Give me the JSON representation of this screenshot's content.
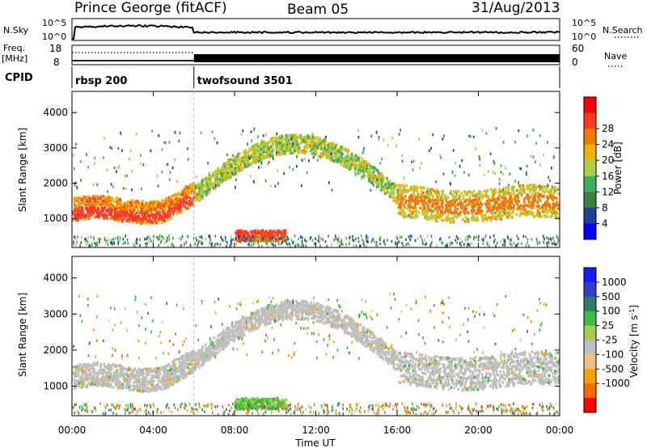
{
  "header": {
    "station": "Prince George (fitACF)",
    "beam": "Beam 05",
    "date": "31/Aug/2013"
  },
  "top_panels": {
    "nsky_label": "N.Sky",
    "nsky_ticks": [
      "10^5",
      "10^0"
    ],
    "nsearch_label": "N.Search",
    "nsearch_ticks": [
      "10^5",
      "10^0"
    ],
    "freq_label": "Freq.",
    "freq_unit": "[MHz]",
    "freq_ticks": [
      "18",
      "8"
    ],
    "nave_label": "Nave",
    "nave_ticks": [
      "60",
      "0"
    ],
    "cpid_label": "CPID"
  },
  "cpid_segments": [
    {
      "name": "rbsp 200",
      "start_hour": 0,
      "end_hour": 6
    },
    {
      "name": "twofsound 3501",
      "start_hour": 6,
      "end_hour": 24
    }
  ],
  "colors": {
    "power_scale": [
      "#0000ff",
      "#1e3f9c",
      "#3f7f3f",
      "#3fae5e",
      "#a8d048",
      "#f2b000",
      "#f07800",
      "#ff3a20",
      "#ff0000"
    ],
    "velocity_scale": [
      "#ff0000",
      "#ff6a00",
      "#ff9d00",
      "#f0c080",
      "#bebebe",
      "#9fd050",
      "#3fb93f",
      "#2e7a66",
      "#2b3fd0",
      "#1a1aff"
    ]
  },
  "chart_data": [
    {
      "type": "heatmap",
      "title": "",
      "xlabel": "",
      "ylabel": "Slant Range [km]",
      "xlim": [
        0,
        24
      ],
      "ylim": [
        180,
        4600
      ],
      "x_ticks": [
        "00:00",
        "04:00",
        "08:00",
        "12:00",
        "16:00",
        "20:00",
        "00:00"
      ],
      "y_ticks": [
        1000,
        2000,
        3000,
        4000
      ],
      "colorbar_label": "Power [dB]",
      "colorbar_ticks": [
        4,
        8,
        12,
        16,
        20,
        24,
        28
      ],
      "features": [
        {
          "name": "near-range band",
          "start_hour": 0,
          "end_hour": 6,
          "range_km": [
            1000,
            1700
          ],
          "power_db": 24
        },
        {
          "name": "arc echo",
          "start_hour": 6,
          "end_hour": 16,
          "range_km": [
            1700,
            3300
          ],
          "power_db": 16
        },
        {
          "name": "afternoon band",
          "start_hour": 16,
          "end_hour": 24,
          "range_km": [
            1100,
            1800
          ],
          "power_db": 20
        },
        {
          "name": "low-range patch",
          "start_hour": 8,
          "end_hour": 10.5,
          "range_km": [
            400,
            700
          ],
          "power_db": 26
        }
      ]
    },
    {
      "type": "heatmap",
      "title": "",
      "xlabel": "Time UT",
      "ylabel": "Slant Range [km]",
      "xlim": [
        0,
        24
      ],
      "ylim": [
        180,
        4600
      ],
      "x_ticks": [
        "00:00",
        "04:00",
        "08:00",
        "12:00",
        "16:00",
        "20:00",
        "00:00"
      ],
      "y_ticks": [
        1000,
        2000,
        3000,
        4000
      ],
      "colorbar_label": "Velocity [m s^-1]",
      "colorbar_ticks": [
        1000,
        500,
        100,
        25,
        -25,
        -100,
        -500,
        -1000
      ],
      "features": [
        {
          "name": "near-range band",
          "start_hour": 0,
          "end_hour": 6,
          "range_km": [
            1000,
            1700
          ],
          "velocity": 0
        },
        {
          "name": "arc echo",
          "start_hour": 6,
          "end_hour": 16,
          "range_km": [
            1700,
            3300
          ],
          "velocity": 0
        },
        {
          "name": "afternoon band",
          "start_hour": 16,
          "end_hour": 24,
          "range_km": [
            1100,
            1800
          ],
          "velocity": 0
        },
        {
          "name": "low-range patch",
          "start_hour": 8,
          "end_hour": 10.5,
          "range_km": [
            400,
            700
          ],
          "velocity": 150
        }
      ]
    }
  ]
}
